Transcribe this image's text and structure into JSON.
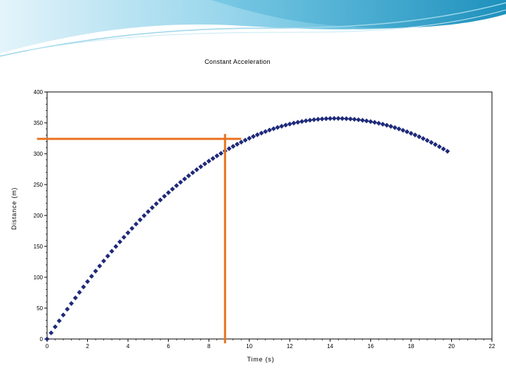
{
  "chart_data": {
    "type": "scatter",
    "title": "Constant Acceleration",
    "xlabel": "Time (s)",
    "ylabel": "Distance (m)",
    "xlim": [
      0,
      22
    ],
    "ylim": [
      0,
      400
    ],
    "x_ticks": [
      0,
      2,
      4,
      6,
      8,
      10,
      12,
      14,
      16,
      18,
      20,
      22
    ],
    "y_ticks": [
      0,
      50,
      100,
      150,
      200,
      250,
      300,
      350,
      400
    ],
    "grid": false,
    "series": [
      {
        "color": "#1f2a7a",
        "model": "quadratic",
        "initial_velocity": 50,
        "acceleration": -3.5,
        "x_range": [
          0,
          19.8
        ],
        "x_step": 0.2,
        "peak": [
          14.3,
          357
        ]
      }
    ],
    "annotations": [
      {
        "type": "hline",
        "y": 324,
        "x_range": [
          -0.5,
          9.6
        ],
        "color": "#e8711f"
      },
      {
        "type": "vline",
        "x": 8.8,
        "y_range": [
          -7,
          332
        ],
        "color": "#e8711f"
      }
    ]
  },
  "colors": {
    "banner_light": "#bfe6f3",
    "banner_dark": "#2aa3c9"
  }
}
